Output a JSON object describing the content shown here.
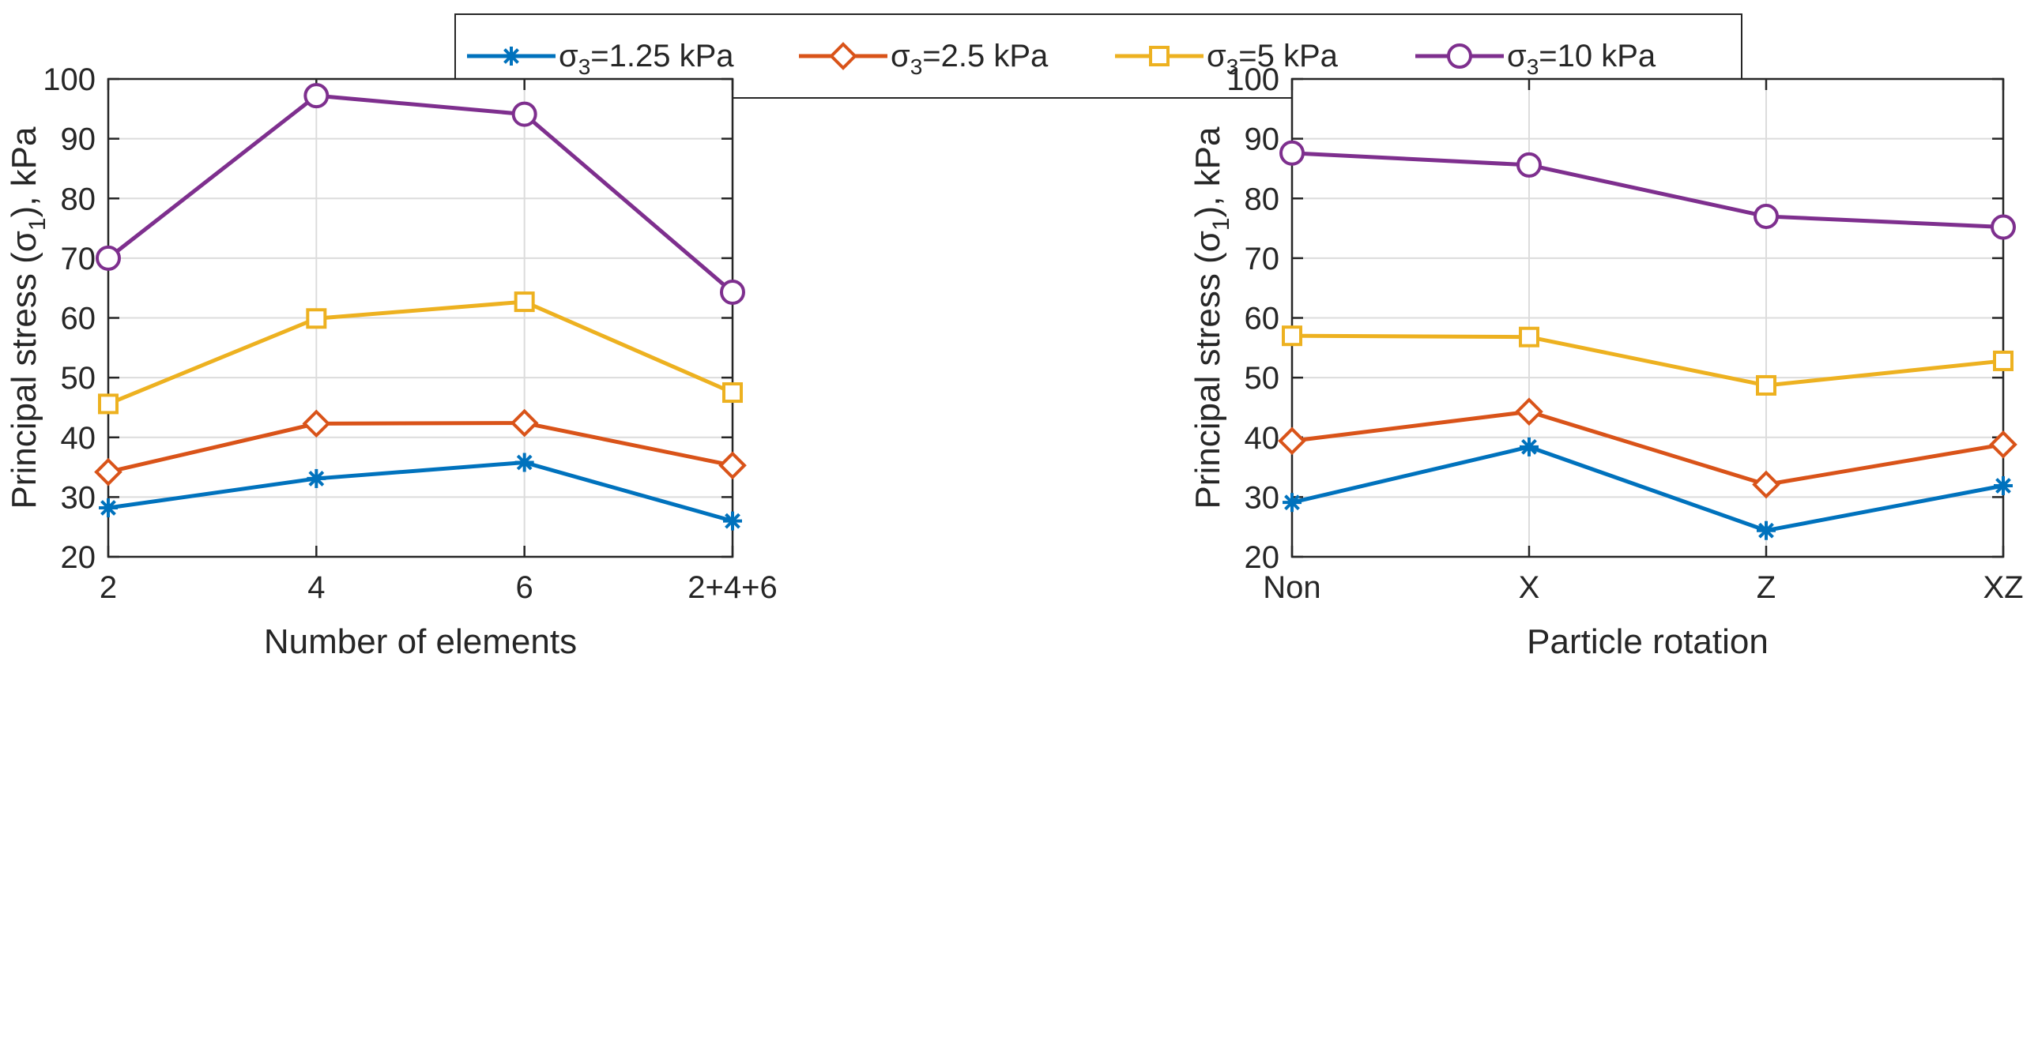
{
  "legend": {
    "entries": [
      {
        "symbol": "σ",
        "sub": "3",
        "value": "=1.25 kPa",
        "color": "#0072BD",
        "marker": "asterisk"
      },
      {
        "symbol": "σ",
        "sub": "3",
        "value": "=2.5 kPa",
        "color": "#D95319",
        "marker": "diamond"
      },
      {
        "symbol": "σ",
        "sub": "3",
        "value": "=5 kPa",
        "color": "#EDB120",
        "marker": "square"
      },
      {
        "symbol": "σ",
        "sub": "3",
        "value": "=10 kPa",
        "color": "#7E2F8E",
        "marker": "circle"
      }
    ]
  },
  "chart_data": [
    {
      "type": "line",
      "xlabel": "Number of elements",
      "ylabel": "Principal stress (σ",
      "ylabel_sub": "1",
      "ylabel_suffix": "), kPa",
      "categories": [
        "2",
        "4",
        "6",
        "2+4+6"
      ],
      "ylim": [
        20,
        100
      ],
      "yticks": [
        "20",
        "30",
        "40",
        "50",
        "60",
        "70",
        "80",
        "90",
        "100"
      ],
      "grid": true,
      "series": [
        {
          "name": "σ3=1.25 kPa",
          "values": [
            28.2,
            33.1,
            35.8,
            26.0
          ]
        },
        {
          "name": "σ3=2.5 kPa",
          "values": [
            34.2,
            42.3,
            42.4,
            35.3
          ]
        },
        {
          "name": "σ3=5 kPa",
          "values": [
            45.6,
            59.9,
            62.7,
            47.5
          ]
        },
        {
          "name": "σ3=10 kPa",
          "values": [
            70.0,
            97.2,
            94.1,
            64.3
          ]
        }
      ]
    },
    {
      "type": "line",
      "xlabel": "Particle rotation",
      "ylabel": "Principal stress (σ",
      "ylabel_sub": "1",
      "ylabel_suffix": "), kPa",
      "categories": [
        "Non",
        "X",
        "Z",
        "XZ"
      ],
      "ylim": [
        20,
        100
      ],
      "yticks": [
        "20",
        "30",
        "40",
        "50",
        "60",
        "70",
        "80",
        "90",
        "100"
      ],
      "grid": true,
      "series": [
        {
          "name": "σ3=1.25 kPa",
          "values": [
            29.1,
            38.4,
            24.4,
            31.9
          ]
        },
        {
          "name": "σ3=2.5 kPa",
          "values": [
            39.4,
            44.3,
            32.1,
            38.8
          ]
        },
        {
          "name": "σ3=5 kPa",
          "values": [
            57.0,
            56.8,
            48.7,
            52.8
          ]
        },
        {
          "name": "σ3=10 kPa",
          "values": [
            87.6,
            85.6,
            77.0,
            75.2
          ]
        }
      ]
    }
  ]
}
